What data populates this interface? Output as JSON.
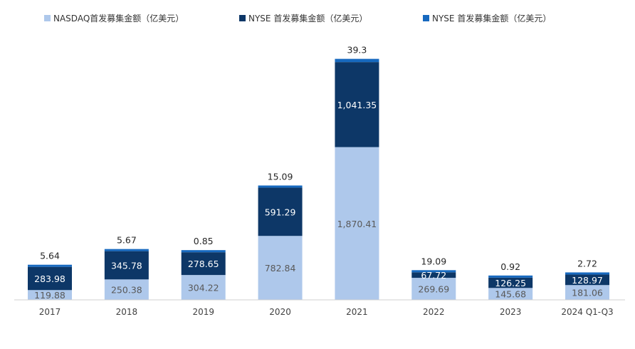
{
  "chart_data": {
    "type": "bar",
    "stacked": true,
    "categories": [
      "2017",
      "2018",
      "2019",
      "2020",
      "2021",
      "2022",
      "2023",
      "2024 Q1-Q3"
    ],
    "series": [
      {
        "name": "NASDAQ首发募集金额（亿美元）",
        "color": "#aec8eb",
        "values": [
          119.88,
          250.38,
          304.22,
          782.84,
          1870.41,
          269.69,
          145.68,
          181.06
        ],
        "labels": [
          "119.88",
          "250.38",
          "304.22",
          "782.84",
          "1,870.41",
          "269.69",
          "145.68",
          "181.06"
        ]
      },
      {
        "name": "NYSE 首发募集金额（亿美元）",
        "color": "#0d3767",
        "values": [
          283.98,
          345.78,
          278.65,
          591.29,
          1041.35,
          67.72,
          126.25,
          128.97
        ],
        "labels": [
          "283.98",
          "345.78",
          "278.65",
          "591.29",
          "1,041.35",
          "67.72",
          "126.25",
          "128.97"
        ]
      },
      {
        "name": "NYSE 首发募集金额（亿美元）",
        "color": "#1769bf",
        "values": [
          5.64,
          5.67,
          0.85,
          15.09,
          39.3,
          19.09,
          0.92,
          2.72
        ],
        "labels": [
          "5.64",
          "5.67",
          "0.85",
          "15.09",
          "39.3",
          "19.09",
          "0.92",
          "2.72"
        ]
      }
    ],
    "ylim": [
      0,
      3000
    ],
    "grid": false,
    "legend_position": "top"
  }
}
